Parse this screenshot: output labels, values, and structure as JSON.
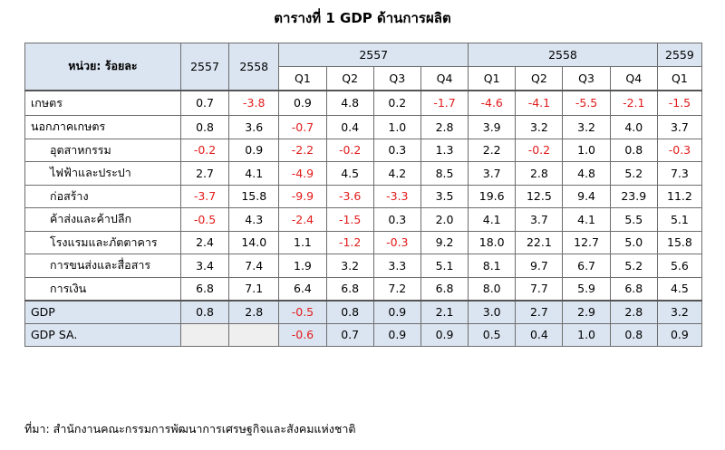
{
  "title": "ตารางที่ 1 GDP ด้านการผลิต",
  "header": {
    "unit": "หน่วย: ร้อยละ",
    "annual": [
      "2557",
      "2558"
    ],
    "groups": [
      "2557",
      "2558",
      "2559"
    ],
    "quarters": [
      "Q1",
      "Q2",
      "Q3",
      "Q4",
      "Q1",
      "Q2",
      "Q3",
      "Q4",
      "Q1"
    ]
  },
  "rows": [
    {
      "label": "เกษตร",
      "values": [
        "0.7",
        "-3.8",
        "0.9",
        "4.8",
        "0.2",
        "-1.7",
        "-4.6",
        "-4.1",
        "-5.5",
        "-2.1",
        "-1.5"
      ]
    },
    {
      "label": "นอกภาคเกษตร",
      "values": [
        "0.8",
        "3.6",
        "-0.7",
        "0.4",
        "1.0",
        "2.8",
        "3.9",
        "3.2",
        "3.2",
        "4.0",
        "3.7"
      ]
    },
    {
      "label": "อุตสาหกรรม",
      "values": [
        "-0.2",
        "0.9",
        "-2.2",
        "-0.2",
        "0.3",
        "1.3",
        "2.2",
        "-0.2",
        "1.0",
        "0.8",
        "-0.3"
      ]
    },
    {
      "label": "ไฟฟ้าและประปา",
      "values": [
        "2.7",
        "4.1",
        "-4.9",
        "4.5",
        "4.2",
        "8.5",
        "3.7",
        "2.8",
        "4.8",
        "5.2",
        "7.3"
      ]
    },
    {
      "label": "ก่อสร้าง",
      "values": [
        "-3.7",
        "15.8",
        "-9.9",
        "-3.6",
        "-3.3",
        "3.5",
        "19.6",
        "12.5",
        "9.4",
        "23.9",
        "11.2"
      ]
    },
    {
      "label": "ค้าส่งและค้าปลีก",
      "values": [
        "-0.5",
        "4.3",
        "-2.4",
        "-1.5",
        "0.3",
        "2.0",
        "4.1",
        "3.7",
        "4.1",
        "5.5",
        "5.1"
      ]
    },
    {
      "label": "โรงแรมและภัตตาคาร",
      "values": [
        "2.4",
        "14.0",
        "1.1",
        "-1.2",
        "-0.3",
        "9.2",
        "18.0",
        "22.1",
        "12.7",
        "5.0",
        "15.8"
      ]
    },
    {
      "label": "การขนส่งและสื่อสาร",
      "values": [
        "3.4",
        "7.4",
        "1.9",
        "3.2",
        "3.3",
        "5.1",
        "8.1",
        "9.7",
        "6.7",
        "5.2",
        "5.6"
      ]
    },
    {
      "label": "การเงิน",
      "values": [
        "6.8",
        "7.1",
        "6.4",
        "6.8",
        "7.2",
        "6.8",
        "8.0",
        "7.7",
        "5.9",
        "6.8",
        "4.5"
      ]
    },
    {
      "label": "GDP",
      "values": [
        "0.8",
        "2.8",
        "-0.5",
        "0.8",
        "0.9",
        "2.1",
        "3.0",
        "2.7",
        "2.9",
        "2.8",
        "3.2"
      ]
    },
    {
      "label": "GDP SA.",
      "values": [
        "",
        "",
        "-0.6",
        "0.7",
        "0.9",
        "0.9",
        "0.5",
        "0.4",
        "1.0",
        "0.8",
        "0.9"
      ]
    }
  ],
  "source": "ที่มา: สำนักงานคณะกรรมการพัฒนาการเศรษฐกิจและสังคมแห่งชาติ",
  "colors": {
    "negative": "#e21b1b",
    "header_bg": "#dbe5f1",
    "border": "#6d6d6d"
  }
}
